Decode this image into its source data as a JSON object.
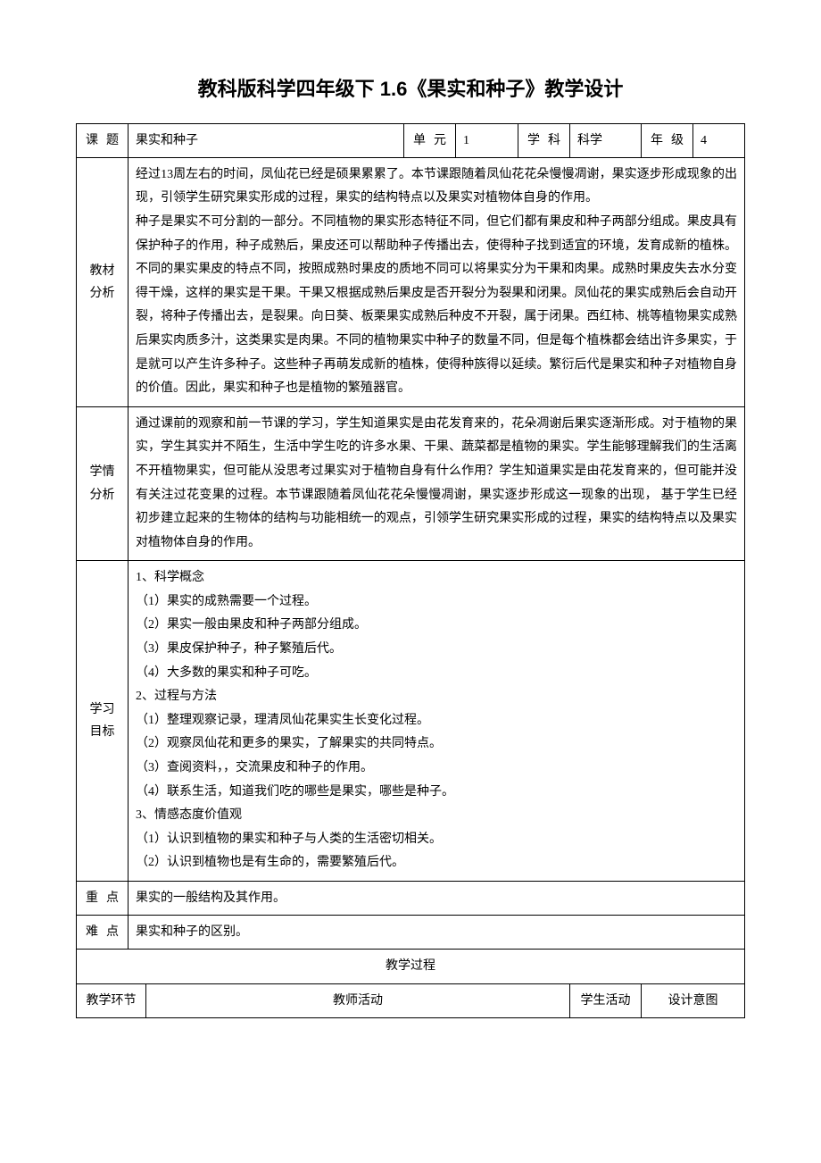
{
  "title": "教科版科学四年级下 1.6《果实和种子》教学设计",
  "headerRow": {
    "topicLabel": "课题",
    "topic": "果实和种子",
    "unitLabel": "单元",
    "unit": "1",
    "subjectLabel": "学科",
    "subject": "科学",
    "gradeLabel": "年级",
    "grade": "4"
  },
  "sections": {
    "textbookAnalysis": {
      "label": "教材分析",
      "text": "经过13周左右的时间，凤仙花已经是硕果累累了。本节课跟随着凤仙花花朵慢慢凋谢，果实逐步形成现象的出现，引领学生研究果实形成的过程，果实的结构特点以及果实对植物体自身的作用。\n种子是果实不可分割的一部分。不同植物的果实形态特征不同，但它们都有果皮和种子两部分组成。果皮具有保护种子的作用，种子成熟后，果皮还可以帮助种子传播出去，使得种子找到适宜的环境，发育成新的植株。不同的果实果皮的特点不同，按照成熟时果皮的质地不同可以将果实分为干果和肉果。成熟时果皮失去水分变得干燥，这样的果实是干果。干果又根据成熟后果皮是否开裂分为裂果和闭果。凤仙花的果实成熟后会自动开裂，将种子传播出去，是裂果。向日葵、板栗果实成熟后种皮不开裂，属于闭果。西红柿、桃等植物果实成熟后果实肉质多汁，这类果实是肉果。不同的植物果实中种子的数量不同，但是每个植株都会结出许多果实，于是就可以产生许多种子。这些种子再萌发成新的植株，使得种族得以延续。繁衍后代是果实和种子对植物自身的价值。因此，果实和种子也是植物的繁殖器官。"
    },
    "learnerAnalysis": {
      "label": "学情分析",
      "text": "通过课前的观察和前一节课的学习，学生知道果实是由花发育来的，花朵凋谢后果实逐渐形成。对于植物的果实，学生其实并不陌生，生活中学生吃的许多水果、干果、蔬菜都是植物的果实。学生能够理解我们的生活离不开植物果实，但可能从没思考过果实对于植物自身有什么作用？学生知道果实是由花发育来的，但可能并没有关注过花变果的过程。本节课跟随着凤仙花花朵慢慢凋谢，果实逐步形成这一现象的出现， 基于学生已经初步建立起来的生物体的结构与功能相统一的观点，引领学生研究果实形成的过程，果实的结构特点以及果实对植物体自身的作用。"
    },
    "objectives": {
      "label": "学习目标",
      "text": "1、科学概念\n（1）果实的成熟需要一个过程。\n（2）果实一般由果皮和种子两部分组成。\n（3）果皮保护种子，种子繁殖后代。\n（4）大多数的果实和种子可吃。\n2、过程与方法\n（1）整理观察记录，理清凤仙花果实生长变化过程。\n（2）观察凤仙花和更多的果实，了解果实的共同特点。\n（3）查阅资料，，交流果皮和种子的作用。\n（4）联系生活，知道我们吃的哪些是果实，哪些是种子。\n3、情感态度价值观\n（1）认识到植物的果实和种子与人类的生活密切相关。\n（2）认识到植物也是有生命的，需要繁殖后代。"
    },
    "keyPoint": {
      "label": "重点",
      "text": "果实的一般结构及其作用。"
    },
    "difficulty": {
      "label": "难点",
      "text": "果实和种子的区别。"
    }
  },
  "processHeader": "教学过程",
  "processCols": {
    "phase": "教学环节",
    "teacher": "教师活动",
    "student": "学生活动",
    "intent": "设计意图"
  },
  "style": {
    "pageBg": "#ffffff",
    "textColor": "#000000",
    "borderColor": "#000000",
    "titleFontSize": 22,
    "bodyFontSize": 14,
    "lineHeight": 1.9,
    "tableWidthPx": 750
  }
}
